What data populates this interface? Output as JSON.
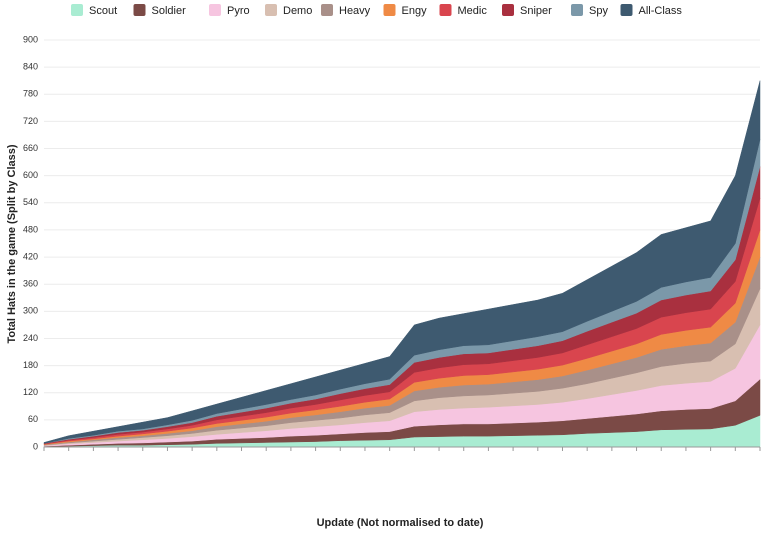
{
  "chart_data": {
    "type": "stacked-area",
    "x_label": "Update (Not normalised to date)",
    "y_label": "Total Hats in the game (Split by Class)",
    "categories": [
      null,
      null,
      null,
      null,
      null,
      null,
      null,
      null,
      null,
      null,
      null,
      null,
      null,
      null,
      null,
      null,
      null,
      null,
      null,
      null,
      null,
      null,
      null,
      null,
      null,
      null,
      null,
      null,
      null,
      null
    ],
    "ylim": [
      0,
      900
    ],
    "yticks": [
      0,
      60,
      120,
      180,
      240,
      300,
      360,
      420,
      480,
      540,
      600,
      660,
      720,
      780,
      840,
      900
    ],
    "grid": true,
    "legend": "top",
    "series": [
      {
        "name": "Scout",
        "color": "#a9ecd2",
        "values": [
          1,
          2,
          3,
          4,
          4,
          5,
          6,
          8,
          9,
          10,
          11,
          12,
          14,
          15,
          16,
          22,
          23,
          24,
          24,
          25,
          26,
          27,
          30,
          32,
          34,
          38,
          39,
          40,
          48,
          70
        ]
      },
      {
        "name": "Soldier",
        "color": "#7b4a46",
        "values": [
          1,
          2,
          3,
          4,
          5,
          6,
          7,
          9,
          10,
          11,
          13,
          14,
          15,
          17,
          18,
          24,
          26,
          27,
          27,
          28,
          29,
          31,
          33,
          36,
          39,
          42,
          44,
          45,
          54,
          80
        ]
      },
      {
        "name": "Pyro",
        "color": "#f6c5e0",
        "values": [
          1,
          3,
          4,
          5,
          7,
          8,
          10,
          11,
          13,
          15,
          17,
          19,
          20,
          22,
          24,
          32,
          34,
          35,
          37,
          38,
          39,
          41,
          44,
          48,
          52,
          56,
          58,
          60,
          72,
          120
        ]
      },
      {
        "name": "Demo",
        "color": "#d8bfb1",
        "values": [
          1,
          2,
          3,
          4,
          5,
          6,
          7,
          9,
          10,
          11,
          13,
          14,
          15,
          17,
          18,
          24,
          26,
          27,
          27,
          28,
          29,
          31,
          33,
          36,
          39,
          42,
          44,
          45,
          54,
          80
        ]
      },
      {
        "name": "Heavy",
        "color": "#a99089",
        "values": [
          1,
          2,
          3,
          4,
          4,
          5,
          6,
          8,
          9,
          10,
          11,
          12,
          14,
          15,
          16,
          22,
          23,
          24,
          24,
          25,
          26,
          27,
          30,
          32,
          34,
          38,
          39,
          40,
          48,
          70
        ]
      },
      {
        "name": "Engy",
        "color": "#ef8a45",
        "values": [
          1,
          2,
          2,
          3,
          4,
          5,
          6,
          7,
          8,
          9,
          10,
          11,
          12,
          13,
          14,
          19,
          20,
          21,
          21,
          22,
          23,
          24,
          26,
          28,
          30,
          33,
          34,
          35,
          42,
          60
        ]
      },
      {
        "name": "Medic",
        "color": "#d9454e",
        "values": [
          1,
          2,
          3,
          4,
          4,
          5,
          6,
          8,
          9,
          10,
          11,
          12,
          14,
          15,
          16,
          22,
          23,
          24,
          24,
          25,
          26,
          27,
          30,
          32,
          34,
          38,
          39,
          40,
          48,
          70
        ]
      },
      {
        "name": "Sniper",
        "color": "#a9303f",
        "values": [
          1,
          2,
          3,
          4,
          4,
          5,
          6,
          8,
          9,
          10,
          11,
          12,
          14,
          15,
          16,
          22,
          23,
          24,
          24,
          25,
          26,
          27,
          30,
          32,
          34,
          38,
          39,
          40,
          48,
          70
        ]
      },
      {
        "name": "Spy",
        "color": "#7b98a9",
        "values": [
          0,
          2,
          2,
          3,
          3,
          4,
          5,
          6,
          7,
          8,
          8,
          9,
          10,
          11,
          12,
          16,
          17,
          18,
          18,
          19,
          20,
          20,
          22,
          24,
          26,
          28,
          29,
          30,
          36,
          60
        ]
      },
      {
        "name": "All-Class",
        "color": "#3e5a70",
        "values": [
          2,
          6,
          9,
          10,
          15,
          16,
          21,
          21,
          26,
          31,
          35,
          40,
          42,
          45,
          50,
          67,
          70,
          71,
          79,
          80,
          81,
          85,
          92,
          100,
          108,
          117,
          120,
          125,
          150,
          130
        ]
      }
    ]
  }
}
